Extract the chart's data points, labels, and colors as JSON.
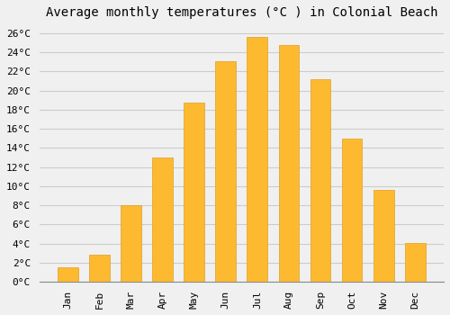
{
  "title": "Average monthly temperatures (°C ) in Colonial Beach",
  "months": [
    "Jan",
    "Feb",
    "Mar",
    "Apr",
    "May",
    "Jun",
    "Jul",
    "Aug",
    "Sep",
    "Oct",
    "Nov",
    "Dec"
  ],
  "values": [
    1.5,
    2.8,
    8.0,
    13.0,
    18.7,
    23.1,
    25.6,
    24.8,
    21.2,
    15.0,
    9.6,
    4.1
  ],
  "bar_color": "#FDB930",
  "bar_edge_color": "#E0A020",
  "ylim": [
    0,
    27
  ],
  "yticks": [
    0,
    2,
    4,
    6,
    8,
    10,
    12,
    14,
    16,
    18,
    20,
    22,
    24,
    26
  ],
  "grid_color": "#cccccc",
  "background_color": "#f0f0f0",
  "title_fontsize": 10,
  "tick_fontsize": 8,
  "font_family": "monospace"
}
